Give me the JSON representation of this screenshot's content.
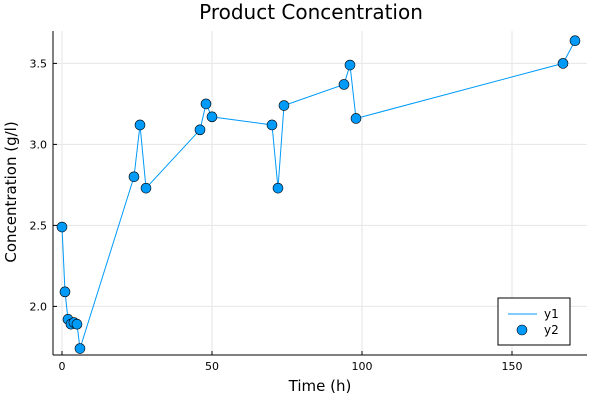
{
  "chart_data": {
    "type": "line",
    "title": "Product Concentration",
    "xlabel": "Time (h)",
    "ylabel": "Concentration (g/l)",
    "xlim": [
      -3,
      175
    ],
    "ylim": [
      1.7,
      3.7
    ],
    "xticks": [
      0,
      50,
      100,
      150
    ],
    "yticks": [
      2.0,
      2.5,
      3.0,
      3.5
    ],
    "ytick_labels": [
      "2.0",
      "2.5",
      "3.0",
      "3.5"
    ],
    "grid": true,
    "legend_position": "bottom-right",
    "color": "#009af9",
    "series": [
      {
        "name": "y1",
        "kind": "line",
        "x": [
          0,
          1,
          2,
          3,
          4,
          5,
          6,
          24,
          26,
          28,
          46,
          48,
          50,
          70,
          72,
          74,
          94,
          96,
          98,
          167,
          171
        ],
        "y": [
          2.49,
          2.09,
          1.92,
          1.89,
          1.9,
          1.89,
          1.74,
          2.8,
          3.12,
          2.73,
          3.09,
          3.25,
          3.17,
          3.12,
          2.73,
          3.24,
          3.37,
          3.49,
          3.16,
          3.5,
          3.64
        ]
      },
      {
        "name": "y2",
        "kind": "scatter",
        "x": [
          0,
          1,
          2,
          3,
          4,
          5,
          6,
          24,
          26,
          28,
          46,
          48,
          50,
          70,
          72,
          74,
          94,
          96,
          98,
          167,
          171
        ],
        "y": [
          2.49,
          2.09,
          1.92,
          1.89,
          1.9,
          1.89,
          1.74,
          2.8,
          3.12,
          2.73,
          3.09,
          3.25,
          3.17,
          3.12,
          2.73,
          3.24,
          3.37,
          3.49,
          3.16,
          3.5,
          3.64
        ]
      }
    ]
  }
}
